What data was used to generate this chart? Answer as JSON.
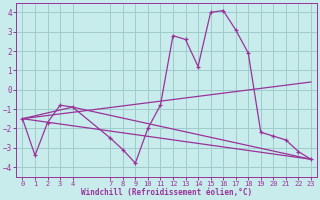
{
  "xlabel": "Windchill (Refroidissement éolien,°C)",
  "background_color": "#c8ecec",
  "grid_color": "#a0cccc",
  "line_color": "#993399",
  "spine_color": "#993399",
  "xlim": [
    -0.5,
    23.5
  ],
  "ylim": [
    -4.5,
    4.5
  ],
  "yticks": [
    -4,
    -3,
    -2,
    -1,
    0,
    1,
    2,
    3,
    4
  ],
  "xticks": [
    0,
    1,
    2,
    3,
    4,
    7,
    8,
    9,
    10,
    11,
    12,
    13,
    14,
    15,
    16,
    17,
    18,
    19,
    20,
    21,
    22,
    23
  ],
  "series": [
    {
      "x": [
        0,
        1,
        2,
        3,
        4,
        7,
        8,
        9,
        10,
        11,
        12,
        13,
        14,
        15,
        16,
        17,
        18,
        19,
        20,
        21,
        22,
        23
      ],
      "y": [
        -1.5,
        -3.4,
        -1.7,
        -0.8,
        -0.9,
        -2.5,
        -3.1,
        -3.8,
        -2.0,
        -0.8,
        2.8,
        2.6,
        1.2,
        4.0,
        4.1,
        3.1,
        1.9,
        -2.2,
        -2.4,
        -2.6,
        -3.2,
        -3.6
      ],
      "marker": true
    },
    {
      "x": [
        0,
        4,
        23
      ],
      "y": [
        -1.5,
        -0.9,
        -3.6
      ],
      "marker": false
    },
    {
      "x": [
        0,
        23
      ],
      "y": [
        -1.5,
        0.4
      ],
      "marker": false
    },
    {
      "x": [
        0,
        23
      ],
      "y": [
        -1.5,
        -3.6
      ],
      "marker": false
    }
  ]
}
